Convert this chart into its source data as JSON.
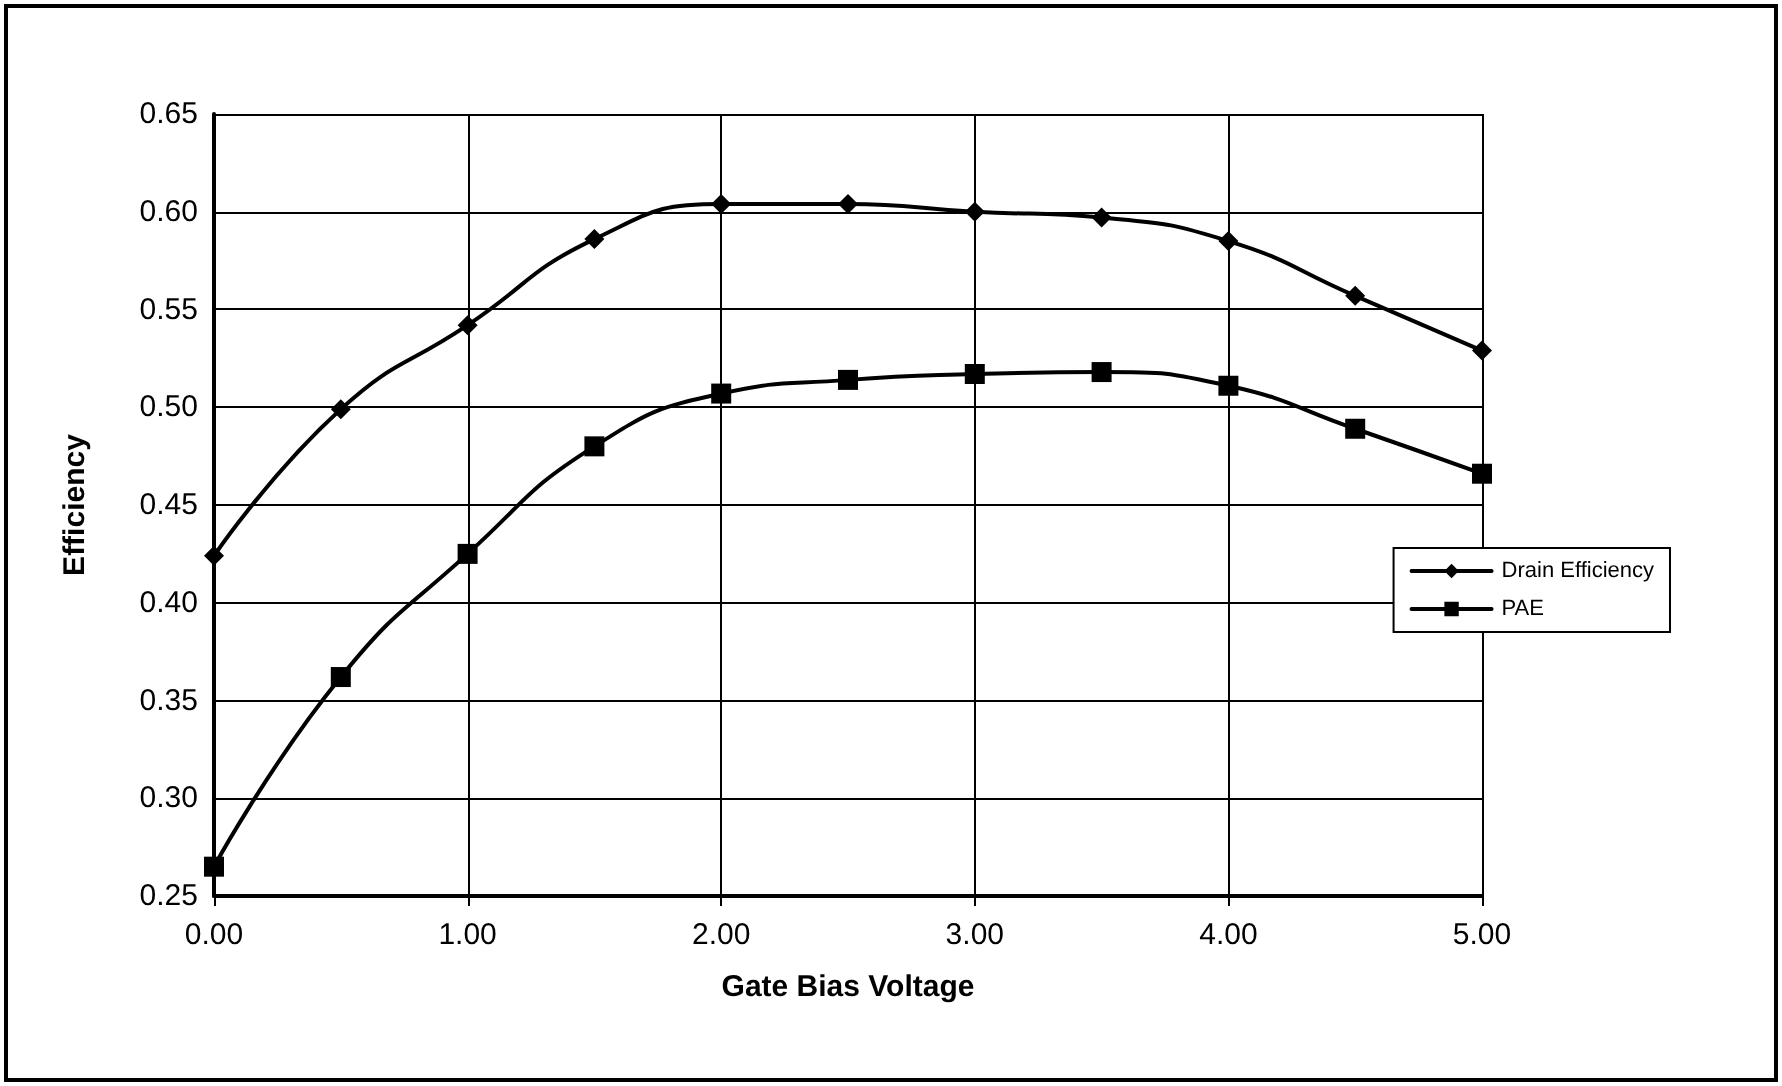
{
  "chart_data": {
    "type": "line",
    "xlabel": "Gate Bias Voltage",
    "ylabel": "Efficiency",
    "x": [
      0,
      0.5,
      1,
      1.5,
      2,
      2.5,
      3,
      3.5,
      4,
      4.5,
      5
    ],
    "series": [
      {
        "name": "Drain Efficiency",
        "color": "#000000",
        "marker": "diamond",
        "values": [
          0.424,
          0.499,
          0.542,
          0.586,
          0.604,
          0.604,
          0.6,
          0.597,
          0.585,
          0.557,
          0.529
        ]
      },
      {
        "name": "PAE",
        "color": "#000000",
        "marker": "square",
        "values": [
          0.265,
          0.362,
          0.425,
          0.48,
          0.507,
          0.514,
          0.517,
          0.518,
          0.511,
          0.489,
          0.466
        ]
      }
    ],
    "xlim": [
      0,
      5
    ],
    "xticks": [
      {
        "value": 0,
        "label": "0.00"
      },
      {
        "value": 1,
        "label": "1.00"
      },
      {
        "value": 2,
        "label": "2.00"
      },
      {
        "value": 3,
        "label": "3.00"
      },
      {
        "value": 4,
        "label": "4.00"
      },
      {
        "value": 5,
        "label": "5.00"
      }
    ],
    "ylim": [
      0.25,
      0.65
    ],
    "yticks": [
      {
        "value": 0.25,
        "label": "0.25"
      },
      {
        "value": 0.3,
        "label": "0.30"
      },
      {
        "value": 0.35,
        "label": "0.35"
      },
      {
        "value": 0.4,
        "label": "0.40"
      },
      {
        "value": 0.45,
        "label": "0.45"
      },
      {
        "value": 0.5,
        "label": "0.50"
      },
      {
        "value": 0.55,
        "label": "0.55"
      },
      {
        "value": 0.6,
        "label": "0.60"
      },
      {
        "value": 0.65,
        "label": "0.65"
      }
    ],
    "grid": true,
    "legend": "right",
    "line_style": "solid"
  }
}
